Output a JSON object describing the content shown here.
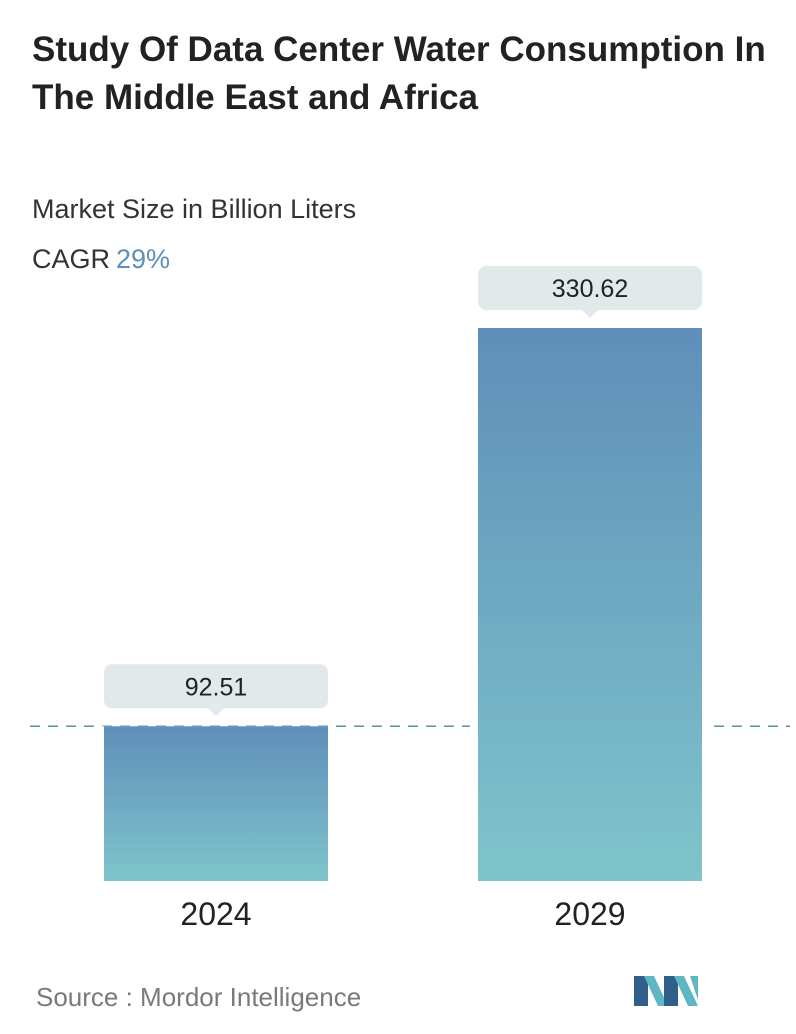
{
  "title": "Study Of Data Center Water Consumption In The Middle East and Africa",
  "subtitle": "Market Size in Billion Liters",
  "cagr": {
    "label": "CAGR",
    "value": "29%"
  },
  "source": "Source :  Mordor Intelligence",
  "colors": {
    "bar_top": "#5f8fb9",
    "bar_bottom": "#7fc4cb",
    "label_bg": "#e2e9ea",
    "dashed_line": "#5b8fa8",
    "logo_dark": "#2f5f8a",
    "logo_light": "#5fb7c4"
  },
  "chart_data": {
    "type": "bar",
    "title": "Study Of Data Center Water Consumption In The Middle East and Africa",
    "ylabel": "Market Size in Billion Liters",
    "xlabel": "",
    "categories": [
      "2024",
      "2029"
    ],
    "values": [
      92.51,
      330.62
    ],
    "value_labels": [
      "92.51",
      "330.62"
    ],
    "ylim": [
      0,
      330.62
    ],
    "reference_line": 92.51,
    "grid": false
  }
}
